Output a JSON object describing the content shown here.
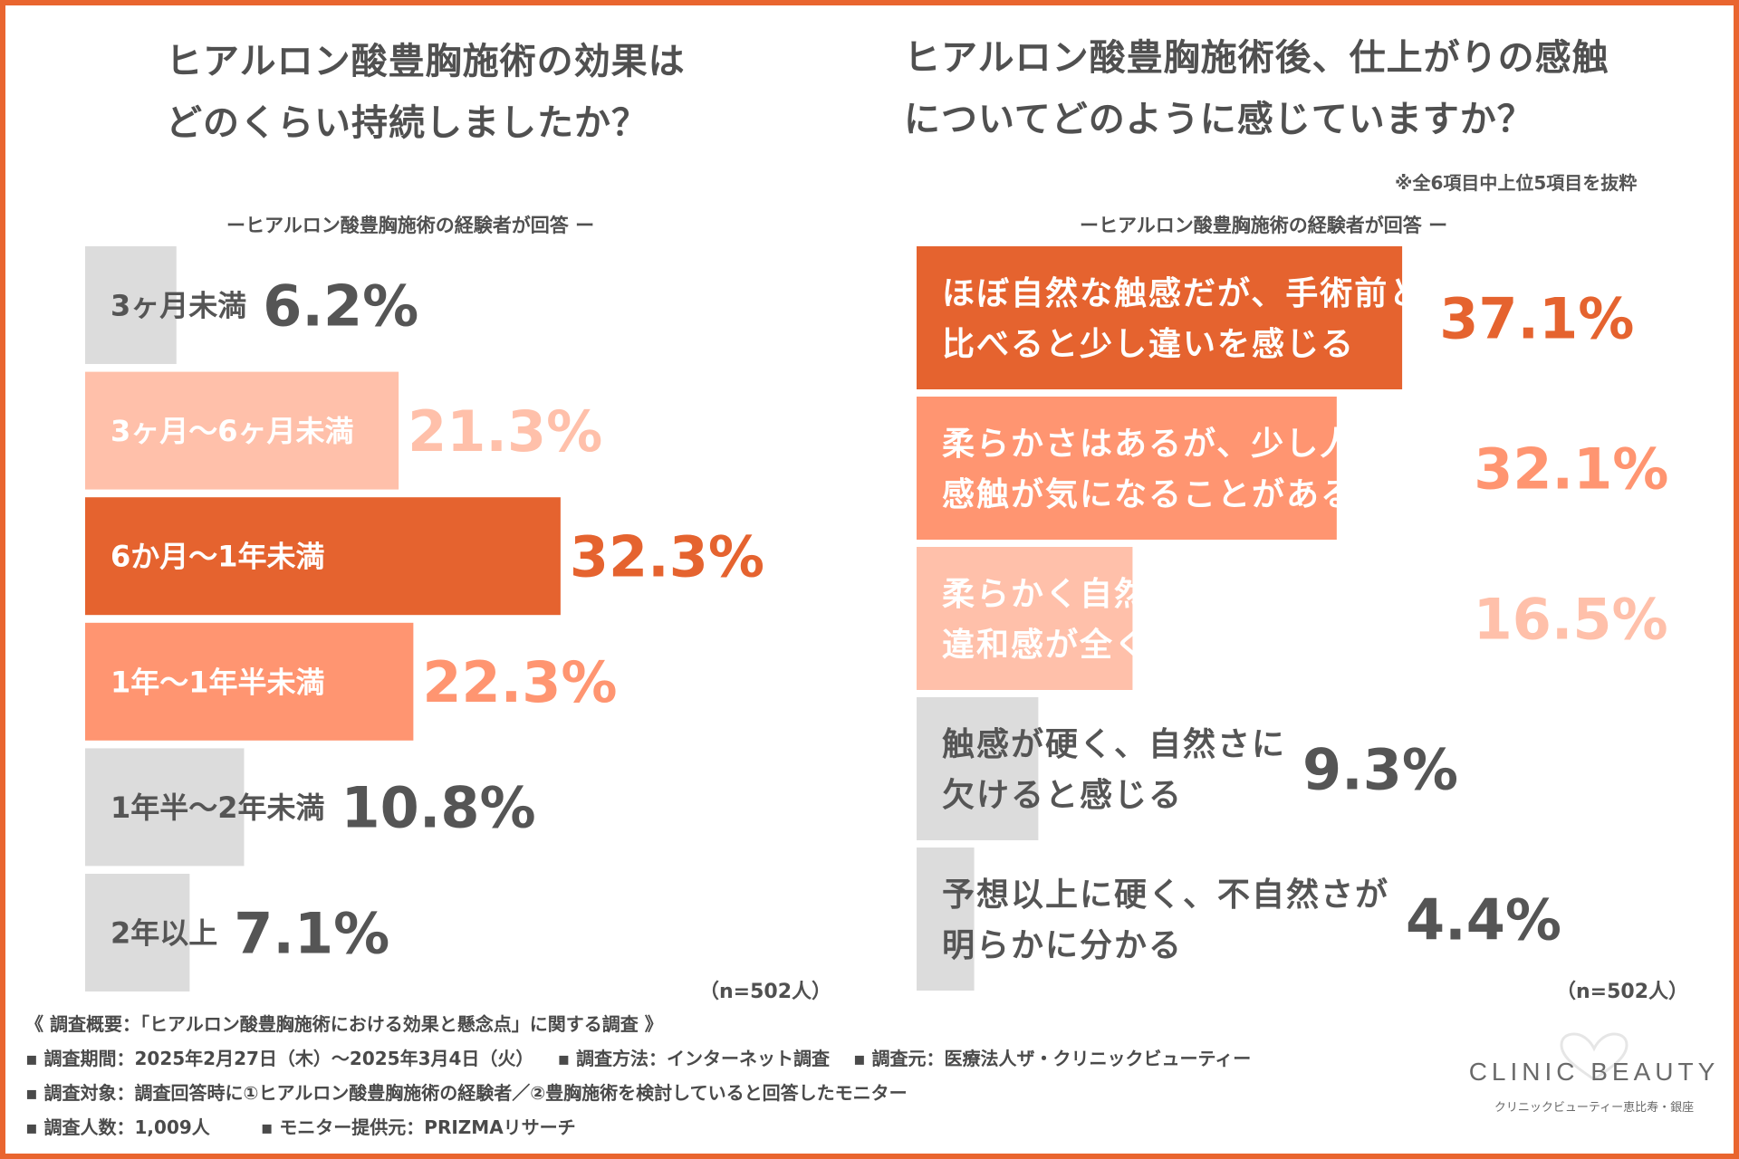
{
  "left": {
    "title_lines": [
      "ヒアルロン酸豊胸施術の効果は",
      "どのくらい持続しましたか？"
    ],
    "subtitle": "ーヒアルロン酸豊胸施術の経験者が回答 ー",
    "n_label": "（n=502人）"
  },
  "right": {
    "title_lines": [
      "ヒアルロン酸豊胸施術後、仕上がりの感触",
      "についてどのように感じていますか？"
    ],
    "note": "※全6項目中上位5項目を抜粋",
    "subtitle": "ーヒアルロン酸豊胸施術の経験者が回答 ー",
    "n_label": "（n=502人）"
  },
  "colors": {
    "primary": "#e5632f",
    "secondary": "#ff9571",
    "tertiary": "#ffc0aa",
    "gray": "#dcdcdc",
    "text_dark": "#555555",
    "border": "#e9652f"
  },
  "chart_data": [
    {
      "type": "bar",
      "orientation": "horizontal",
      "title": "ヒアルロン酸豊胸施術の効果はどのくらい持続しましたか？",
      "unit": "%",
      "xlim": [
        0,
        40
      ],
      "categories": [
        "3ヶ月未満",
        "3ヶ月～6ヶ月未満",
        "6か月～1年未満",
        "1年～1年半未満",
        "1年半～2年未満",
        "2年以上"
      ],
      "category_lines": [
        [
          "3ヶ月未満"
        ],
        [
          "3ヶ月～6ヶ月未満"
        ],
        [
          "6か月～1年未満"
        ],
        [
          "1年～1年半未満"
        ],
        [
          "1年半～2年未満"
        ],
        [
          "2年以上"
        ]
      ],
      "values": [
        6.2,
        21.3,
        32.3,
        22.3,
        10.8,
        7.1
      ],
      "value_labels": [
        "6.2%",
        "21.3%",
        "32.3%",
        "22.3%",
        "10.8%",
        "7.1%"
      ],
      "color_roles": [
        "gray",
        "tertiary",
        "primary",
        "secondary",
        "gray",
        "gray"
      ]
    },
    {
      "type": "bar",
      "orientation": "horizontal",
      "title": "ヒアルロン酸豊胸施術後、仕上がりの感触についてどのように感じていますか？",
      "unit": "%",
      "xlim": [
        0,
        40
      ],
      "categories": [
        "ほぼ自然な触感だが、手術前と比べると少し違いを感じる",
        "柔らかさはあるが、少し人工的な感触が気になることがある",
        "柔らかく自然な触感で、自分でも違和感が全くない",
        "触感が硬く、自然さに欠けると感じる",
        "予想以上に硬く、不自然さが明らかに分かる"
      ],
      "category_lines": [
        [
          "ほぼ自然な触感だが、手術前と",
          "比べると少し違いを感じる"
        ],
        [
          "柔らかさはあるが、少し人工的な",
          "感触が気になることがある"
        ],
        [
          "柔らかく自然な触感で、自分でも",
          "違和感が全くない"
        ],
        [
          "触感が硬く、自然さに",
          "欠けると感じる"
        ],
        [
          "予想以上に硬く、不自然さが",
          "明らかに分かる"
        ]
      ],
      "values": [
        37.1,
        32.1,
        16.5,
        9.3,
        4.4
      ],
      "value_labels": [
        "37.1%",
        "32.1%",
        "16.5%",
        "9.3%",
        "4.4%"
      ],
      "color_roles": [
        "primary",
        "secondary",
        "tertiary",
        "gray",
        "gray"
      ]
    }
  ],
  "footer": {
    "line1": "《 調査概要：「ヒアルロン酸豊胸施術における効果と懸念点」に関する調査 》",
    "period": "▪ 調査期間：2025年2月27日（木）～2025年3月4日（火）",
    "method": "▪ 調査方法：インターネット調査",
    "source": "▪ 調査元：医療法人ザ・クリニックビューティー",
    "target": "▪ 調査対象：調査回答時に①ヒアルロン酸豊胸施術の経験者／②豊胸施術を検討していると回答したモニター",
    "count": "▪ 調査人数：1,009人",
    "provider": "▪ モニター提供元：PRIZMAリサーチ"
  },
  "logo": {
    "name": "CLINIC BEAUTY",
    "sub": "クリニックビューティー恵比寿・銀座",
    "icon": "heart-outline-logo-icon"
  }
}
